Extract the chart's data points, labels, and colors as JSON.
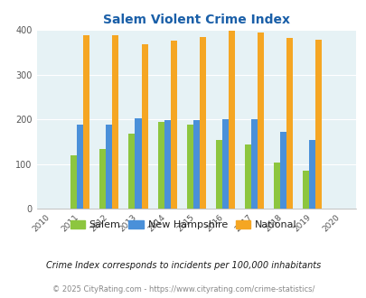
{
  "title": "Salem Violent Crime Index",
  "years": [
    2010,
    2011,
    2012,
    2013,
    2014,
    2015,
    2016,
    2017,
    2018,
    2019,
    2020
  ],
  "data_years": [
    2011,
    2012,
    2013,
    2014,
    2015,
    2016,
    2017,
    2018,
    2019
  ],
  "salem": [
    120,
    133,
    167,
    194,
    188,
    153,
    143,
    104,
    85
  ],
  "new_hampshire": [
    188,
    188,
    202,
    197,
    198,
    199,
    199,
    172,
    153
  ],
  "national": [
    387,
    387,
    367,
    376,
    383,
    397,
    394,
    381,
    377
  ],
  "color_salem": "#8dc63f",
  "color_nh": "#4a90d9",
  "color_national": "#f5a623",
  "background_color": "#e6f2f5",
  "ylabel_max": 400,
  "yticks": [
    0,
    100,
    200,
    300,
    400
  ],
  "bar_width": 0.22,
  "legend_labels": [
    "Salem",
    "New Hampshire",
    "National"
  ],
  "footnote1": "Crime Index corresponds to incidents per 100,000 inhabitants",
  "footnote2": "© 2025 CityRating.com - https://www.cityrating.com/crime-statistics/"
}
